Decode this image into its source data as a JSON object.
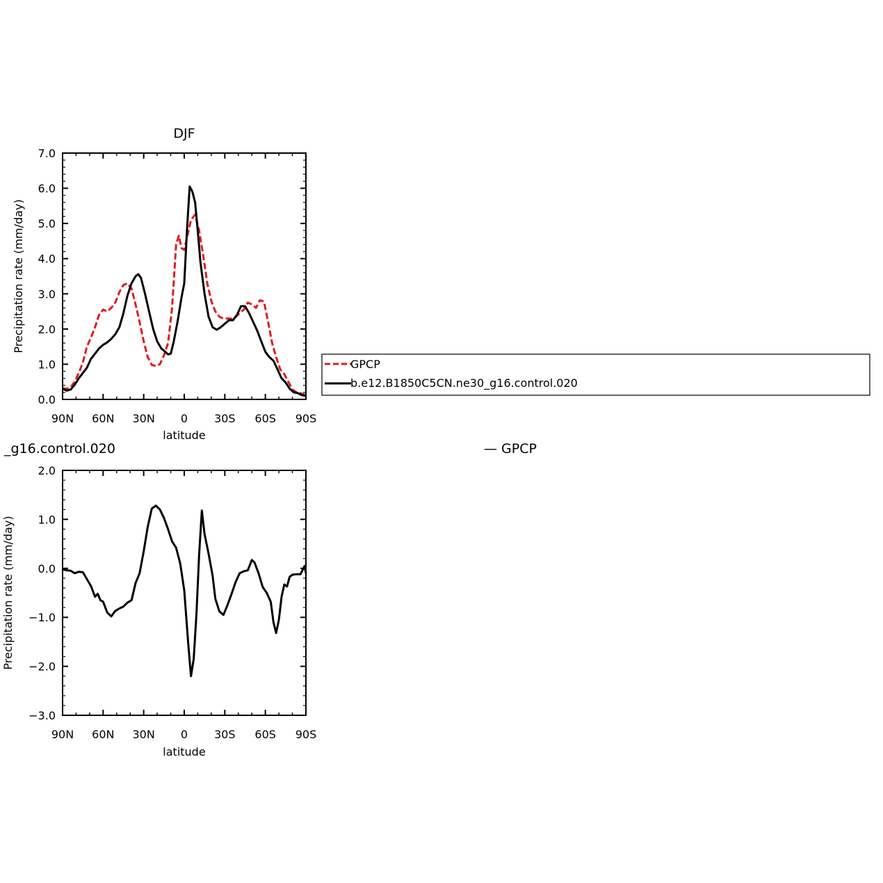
{
  "chart_data": [
    {
      "type": "line",
      "title": "DJF",
      "xlabel": "latitude",
      "ylabel": "Precipitation rate (mm/day)",
      "xlim": [
        90,
        -90
      ],
      "ylim": [
        0,
        7
      ],
      "xticks": [
        {
          "value": 90,
          "label": "90N"
        },
        {
          "value": 60,
          "label": "60N"
        },
        {
          "value": 30,
          "label": "30N"
        },
        {
          "value": 0,
          "label": "0"
        },
        {
          "value": -30,
          "label": "30S"
        },
        {
          "value": -60,
          "label": "60S"
        },
        {
          "value": -90,
          "label": "90S"
        }
      ],
      "yticks": [
        {
          "value": 0,
          "label": "0.0"
        },
        {
          "value": 1,
          "label": "1.0"
        },
        {
          "value": 2,
          "label": "2.0"
        },
        {
          "value": 3,
          "label": "3.0"
        },
        {
          "value": 4,
          "label": "4.0"
        },
        {
          "value": 5,
          "label": "5.0"
        },
        {
          "value": 6,
          "label": "6.0"
        },
        {
          "value": 7,
          "label": "7.0"
        }
      ],
      "legend_position": "right",
      "series": [
        {
          "name": "GPCP",
          "color": "#e31a1c",
          "dash": "dashed",
          "points": [
            [
              90,
              0.32
            ],
            [
              87,
              0.3
            ],
            [
              84,
              0.35
            ],
            [
              81,
              0.5
            ],
            [
              78,
              0.75
            ],
            [
              75,
              1.05
            ],
            [
              72,
              1.5
            ],
            [
              69,
              1.75
            ],
            [
              66,
              2.05
            ],
            [
              63,
              2.4
            ],
            [
              60,
              2.55
            ],
            [
              57,
              2.5
            ],
            [
              54,
              2.6
            ],
            [
              51,
              2.75
            ],
            [
              48,
              3.05
            ],
            [
              45,
              3.25
            ],
            [
              42,
              3.3
            ],
            [
              39,
              3.15
            ],
            [
              36,
              2.7
            ],
            [
              33,
              2.2
            ],
            [
              30,
              1.65
            ],
            [
              27,
              1.2
            ],
            [
              24,
              0.98
            ],
            [
              21,
              0.95
            ],
            [
              18,
              1.0
            ],
            [
              15,
              1.25
            ],
            [
              12,
              1.6
            ],
            [
              9,
              2.6
            ],
            [
              6,
              4.4
            ],
            [
              4,
              4.65
            ],
            [
              2,
              4.3
            ],
            [
              0,
              4.25
            ],
            [
              -2,
              4.6
            ],
            [
              -5,
              5.1
            ],
            [
              -8,
              5.25
            ],
            [
              -11,
              4.8
            ],
            [
              -14,
              4.1
            ],
            [
              -17,
              3.3
            ],
            [
              -20,
              2.8
            ],
            [
              -23,
              2.5
            ],
            [
              -26,
              2.35
            ],
            [
              -29,
              2.3
            ],
            [
              -32,
              2.3
            ],
            [
              -35,
              2.3
            ],
            [
              -38,
              2.35
            ],
            [
              -41,
              2.45
            ],
            [
              -44,
              2.55
            ],
            [
              -47,
              2.75
            ],
            [
              -50,
              2.7
            ],
            [
              -53,
              2.6
            ],
            [
              -56,
              2.82
            ],
            [
              -59,
              2.78
            ],
            [
              -62,
              2.2
            ],
            [
              -65,
              1.6
            ],
            [
              -68,
              1.2
            ],
            [
              -71,
              0.85
            ],
            [
              -74,
              0.72
            ],
            [
              -77,
              0.5
            ],
            [
              -80,
              0.28
            ],
            [
              -83,
              0.2
            ],
            [
              -86,
              0.18
            ],
            [
              -90,
              0.12
            ]
          ]
        },
        {
          "name": "b.e12.B1850C5CN.ne30_g16.control.020",
          "color": "#000000",
          "dash": "solid",
          "points": [
            [
              90,
              0.3
            ],
            [
              87,
              0.25
            ],
            [
              84,
              0.28
            ],
            [
              81,
              0.42
            ],
            [
              78,
              0.6
            ],
            [
              75,
              0.75
            ],
            [
              72,
              0.9
            ],
            [
              69,
              1.15
            ],
            [
              66,
              1.3
            ],
            [
              63,
              1.45
            ],
            [
              60,
              1.55
            ],
            [
              57,
              1.62
            ],
            [
              54,
              1.72
            ],
            [
              51,
              1.85
            ],
            [
              48,
              2.05
            ],
            [
              45,
              2.45
            ],
            [
              42,
              2.95
            ],
            [
              39,
              3.3
            ],
            [
              36,
              3.5
            ],
            [
              34,
              3.56
            ],
            [
              32,
              3.45
            ],
            [
              29,
              3.0
            ],
            [
              26,
              2.5
            ],
            [
              23,
              2.0
            ],
            [
              20,
              1.65
            ],
            [
              17,
              1.45
            ],
            [
              14,
              1.35
            ],
            [
              12,
              1.28
            ],
            [
              10,
              1.3
            ],
            [
              8,
              1.6
            ],
            [
              5,
              2.2
            ],
            [
              2,
              2.9
            ],
            [
              0,
              3.3
            ],
            [
              -2,
              4.8
            ],
            [
              -4,
              6.05
            ],
            [
              -6,
              5.9
            ],
            [
              -8,
              5.6
            ],
            [
              -10,
              4.8
            ],
            [
              -12,
              3.9
            ],
            [
              -15,
              3.0
            ],
            [
              -18,
              2.35
            ],
            [
              -21,
              2.05
            ],
            [
              -24,
              1.98
            ],
            [
              -27,
              2.05
            ],
            [
              -30,
              2.15
            ],
            [
              -33,
              2.25
            ],
            [
              -36,
              2.25
            ],
            [
              -39,
              2.4
            ],
            [
              -42,
              2.65
            ],
            [
              -45,
              2.65
            ],
            [
              -48,
              2.45
            ],
            [
              -51,
              2.2
            ],
            [
              -54,
              1.95
            ],
            [
              -57,
              1.65
            ],
            [
              -60,
              1.35
            ],
            [
              -63,
              1.2
            ],
            [
              -66,
              1.1
            ],
            [
              -69,
              0.85
            ],
            [
              -72,
              0.6
            ],
            [
              -75,
              0.48
            ],
            [
              -78,
              0.3
            ],
            [
              -81,
              0.2
            ],
            [
              -84,
              0.18
            ],
            [
              -87,
              0.12
            ],
            [
              -90,
              0.1
            ]
          ]
        }
      ]
    },
    {
      "type": "line",
      "title": "_g16.control.020",
      "title_right": "— GPCP",
      "xlabel": "latitude",
      "ylabel": "Precipitation rate (mm/day)",
      "xlim": [
        90,
        -90
      ],
      "ylim": [
        -3,
        2
      ],
      "xticks": [
        {
          "value": 90,
          "label": "90N"
        },
        {
          "value": 60,
          "label": "60N"
        },
        {
          "value": 30,
          "label": "30N"
        },
        {
          "value": 0,
          "label": "0"
        },
        {
          "value": -30,
          "label": "30S"
        },
        {
          "value": -60,
          "label": "60S"
        },
        {
          "value": -90,
          "label": "90S"
        }
      ],
      "yticks": [
        {
          "value": -3,
          "label": "−3.0"
        },
        {
          "value": -2,
          "label": "−2.0"
        },
        {
          "value": -1,
          "label": "−1.0"
        },
        {
          "value": 0,
          "label": "0.0"
        },
        {
          "value": 1,
          "label": "1.0"
        },
        {
          "value": 2,
          "label": "2.0"
        }
      ],
      "series": [
        {
          "color": "#000000",
          "dash": "solid",
          "points": [
            [
              90,
              -0.02
            ],
            [
              87,
              -0.04
            ],
            [
              84,
              -0.05
            ],
            [
              81,
              -0.1
            ],
            [
              78,
              -0.07
            ],
            [
              75,
              -0.08
            ],
            [
              72,
              -0.22
            ],
            [
              69,
              -0.36
            ],
            [
              66,
              -0.58
            ],
            [
              64,
              -0.52
            ],
            [
              62,
              -0.65
            ],
            [
              60,
              -0.68
            ],
            [
              57,
              -0.9
            ],
            [
              54,
              -0.98
            ],
            [
              51,
              -0.87
            ],
            [
              48,
              -0.82
            ],
            [
              45,
              -0.78
            ],
            [
              42,
              -0.7
            ],
            [
              39,
              -0.65
            ],
            [
              36,
              -0.3
            ],
            [
              33,
              -0.1
            ],
            [
              30,
              0.35
            ],
            [
              27,
              0.85
            ],
            [
              24,
              1.22
            ],
            [
              21,
              1.28
            ],
            [
              18,
              1.2
            ],
            [
              15,
              1.03
            ],
            [
              12,
              0.8
            ],
            [
              9,
              0.55
            ],
            [
              6,
              0.42
            ],
            [
              3,
              0.1
            ],
            [
              0,
              -0.45
            ],
            [
              -3,
              -1.55
            ],
            [
              -5,
              -2.2
            ],
            [
              -7,
              -1.85
            ],
            [
              -9,
              -0.95
            ],
            [
              -11,
              0.28
            ],
            [
              -13,
              1.18
            ],
            [
              -15,
              0.7
            ],
            [
              -18,
              0.3
            ],
            [
              -21,
              -0.15
            ],
            [
              -23,
              -0.62
            ],
            [
              -26,
              -0.88
            ],
            [
              -29,
              -0.95
            ],
            [
              -32,
              -0.75
            ],
            [
              -35,
              -0.52
            ],
            [
              -38,
              -0.28
            ],
            [
              -41,
              -0.1
            ],
            [
              -44,
              -0.06
            ],
            [
              -47,
              -0.04
            ],
            [
              -50,
              0.17
            ],
            [
              -52,
              0.12
            ],
            [
              -55,
              -0.1
            ],
            [
              -58,
              -0.38
            ],
            [
              -61,
              -0.5
            ],
            [
              -64,
              -0.68
            ],
            [
              -66,
              -1.1
            ],
            [
              -68,
              -1.32
            ],
            [
              -70,
              -1.05
            ],
            [
              -72,
              -0.58
            ],
            [
              -74,
              -0.33
            ],
            [
              -76,
              -0.37
            ],
            [
              -78,
              -0.17
            ],
            [
              -80,
              -0.13
            ],
            [
              -83,
              -0.12
            ],
            [
              -86,
              -0.12
            ],
            [
              -89,
              0.05
            ],
            [
              -90,
              -0.1
            ]
          ]
        }
      ]
    }
  ]
}
